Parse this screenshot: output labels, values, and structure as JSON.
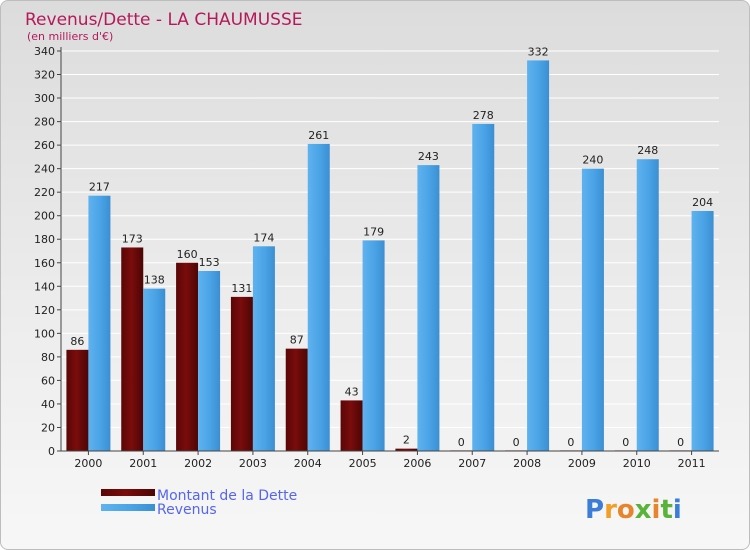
{
  "chart_data": {
    "type": "bar",
    "title": "Revenus/Dette - LA CHAUMUSSE",
    "subtitle": "(en milliers d'€)",
    "categories": [
      "2000",
      "2001",
      "2002",
      "2003",
      "2004",
      "2005",
      "2006",
      "2007",
      "2008",
      "2009",
      "2010",
      "2011"
    ],
    "series": [
      {
        "name": "Montant de la Dette",
        "color": "#7a0c0c",
        "values": [
          86,
          173,
          160,
          131,
          87,
          43,
          2,
          0,
          0,
          0,
          0,
          0
        ]
      },
      {
        "name": "Revenus",
        "color": "#4aa3e6",
        "values": [
          217,
          138,
          153,
          174,
          261,
          179,
          243,
          278,
          332,
          240,
          248,
          204
        ]
      }
    ],
    "ylim": [
      0,
      340
    ],
    "yticks": [
      0,
      20,
      40,
      60,
      80,
      100,
      120,
      140,
      160,
      180,
      200,
      220,
      240,
      260,
      280,
      300,
      320,
      340
    ],
    "xlabel": "",
    "ylabel": "",
    "grid": true,
    "legend_position": "bottom-left"
  },
  "logo": {
    "letters": [
      "P",
      "r",
      "o",
      "x",
      "i",
      "t",
      "i"
    ]
  }
}
